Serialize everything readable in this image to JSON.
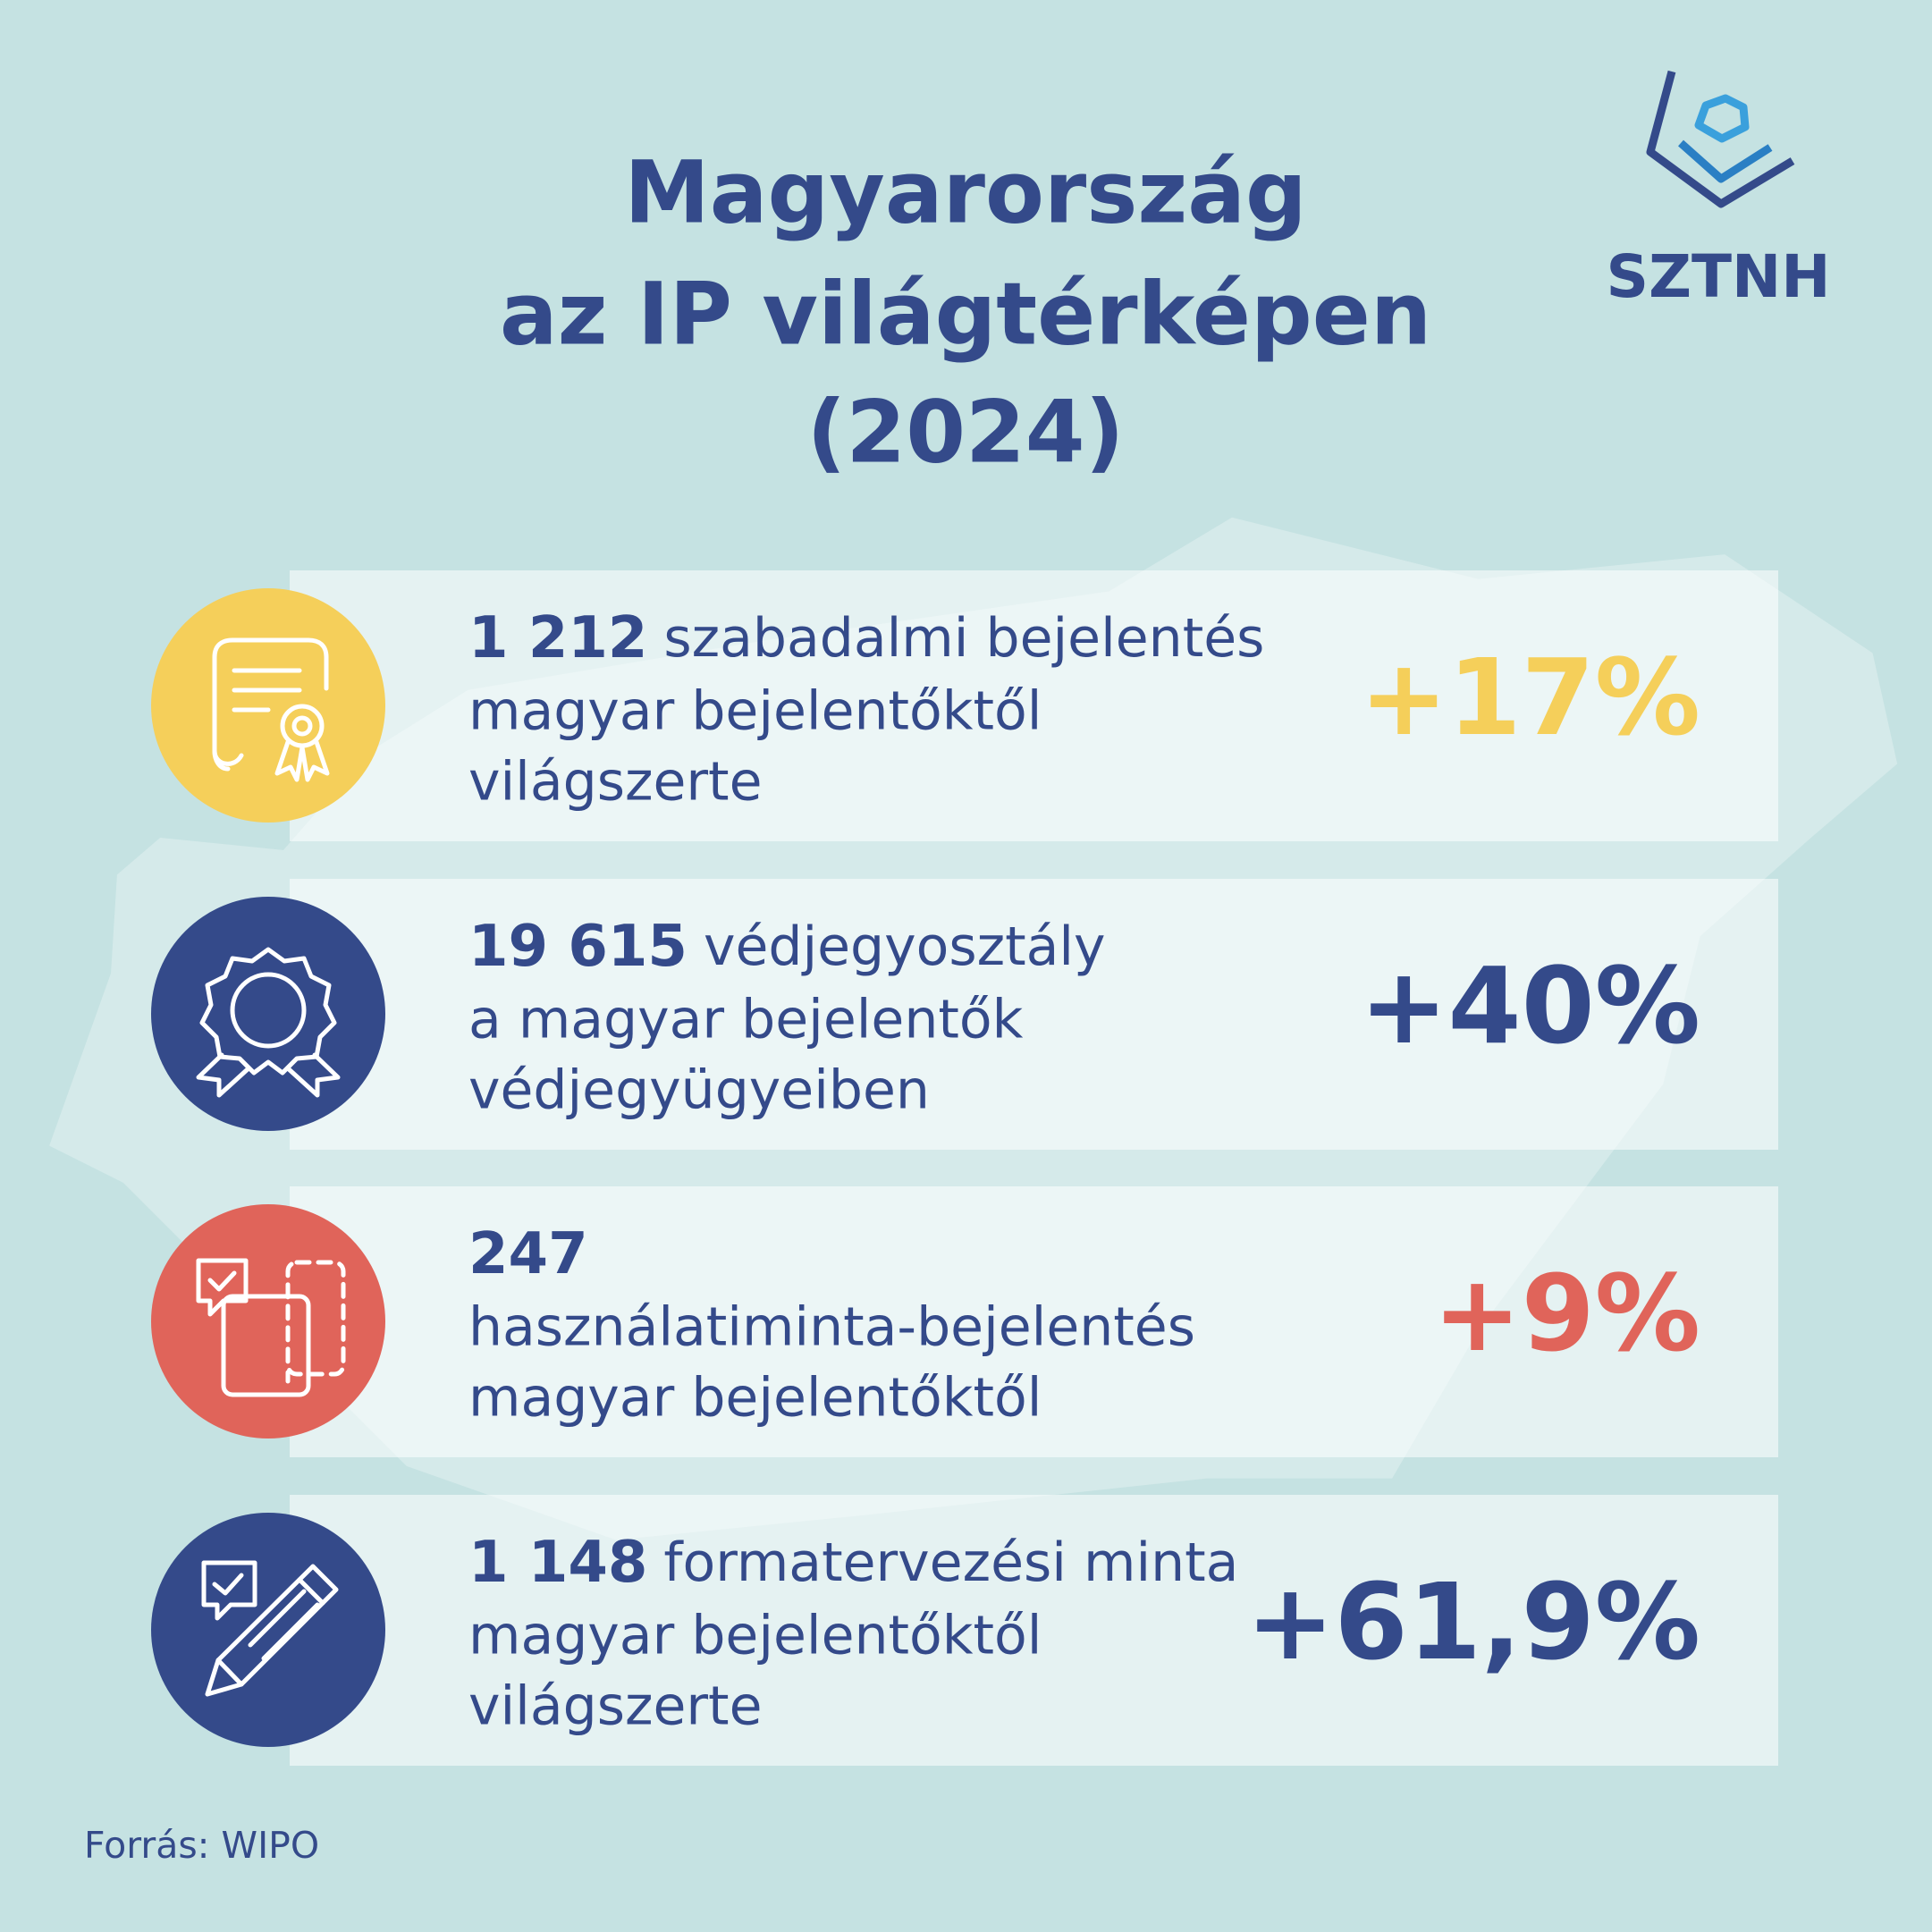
{
  "header": {
    "title": [
      "Magyarország",
      "az IP világtérképen",
      "(2024)"
    ],
    "logo": "SZTNH"
  },
  "items": [
    {
      "number": "1 212",
      "first_line": "szabadalmi bejelentés",
      "lines": [
        "magyar bejelentőktől",
        "világszerte"
      ],
      "change": "+17%"
    },
    {
      "number": "19 615",
      "first_line": "védjegyosztály",
      "lines": [
        "a magyar bejelentők",
        "védjegyügyeiben"
      ],
      "change": "+40%"
    },
    {
      "number": "247",
      "lines": [
        "használatiminta-bejelentés",
        "magyar bejelentőktől"
      ],
      "change": "+9%"
    },
    {
      "number": "1 148",
      "first_line": "formatervezési minta",
      "lines": [
        "magyar bejelentőktől",
        "világszerte"
      ],
      "change": "+61,9%"
    }
  ],
  "source": "Forrás: WIPO"
}
